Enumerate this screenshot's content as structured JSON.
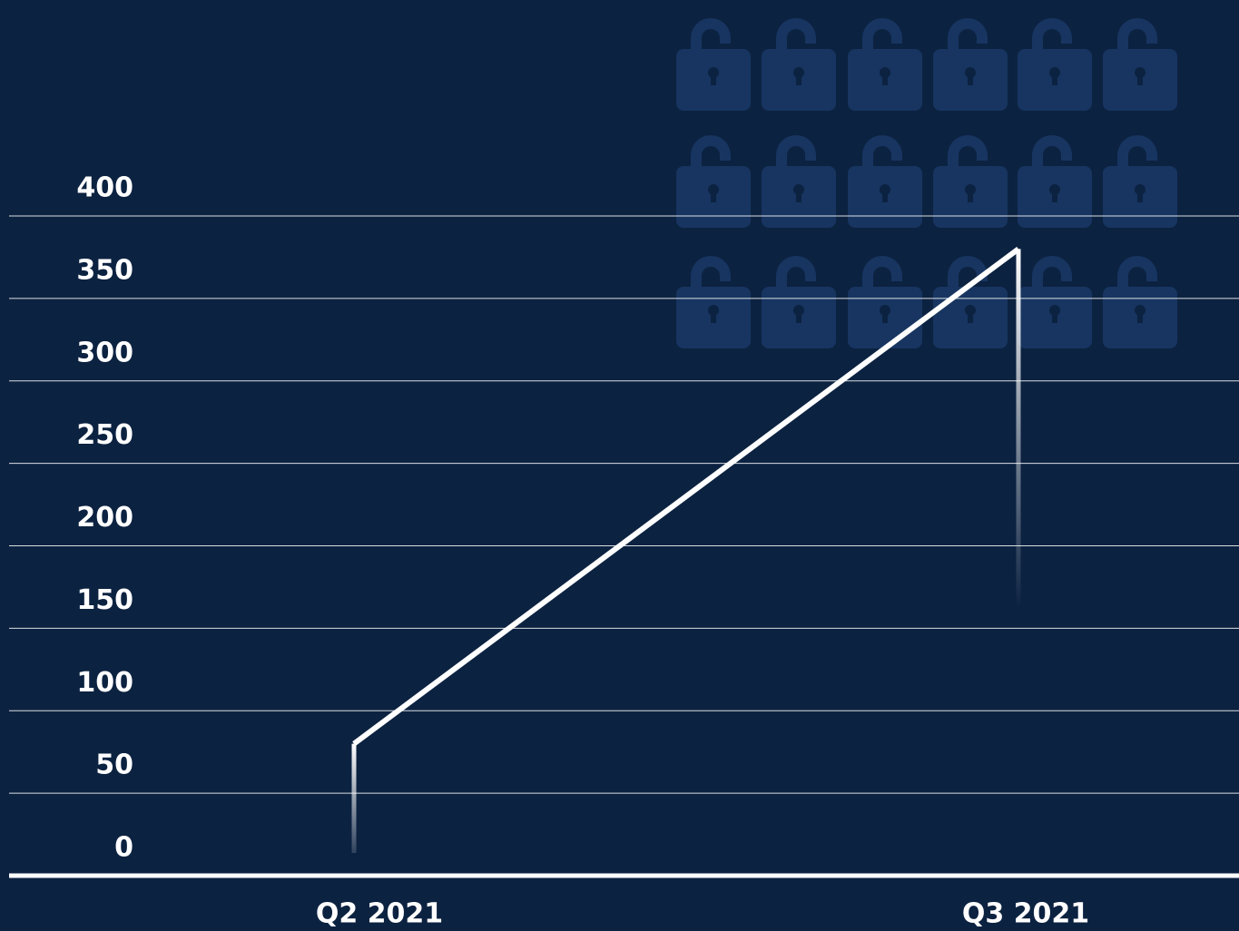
{
  "chart_data": {
    "type": "line",
    "categories": [
      "Q2 2021",
      "Q3 2021"
    ],
    "values": [
      80,
      380
    ],
    "color": "#ffffff",
    "ylim": [
      0,
      400
    ],
    "yticks": [
      0,
      50,
      100,
      150,
      200,
      250,
      300,
      350,
      400
    ],
    "grid": true
  }
}
